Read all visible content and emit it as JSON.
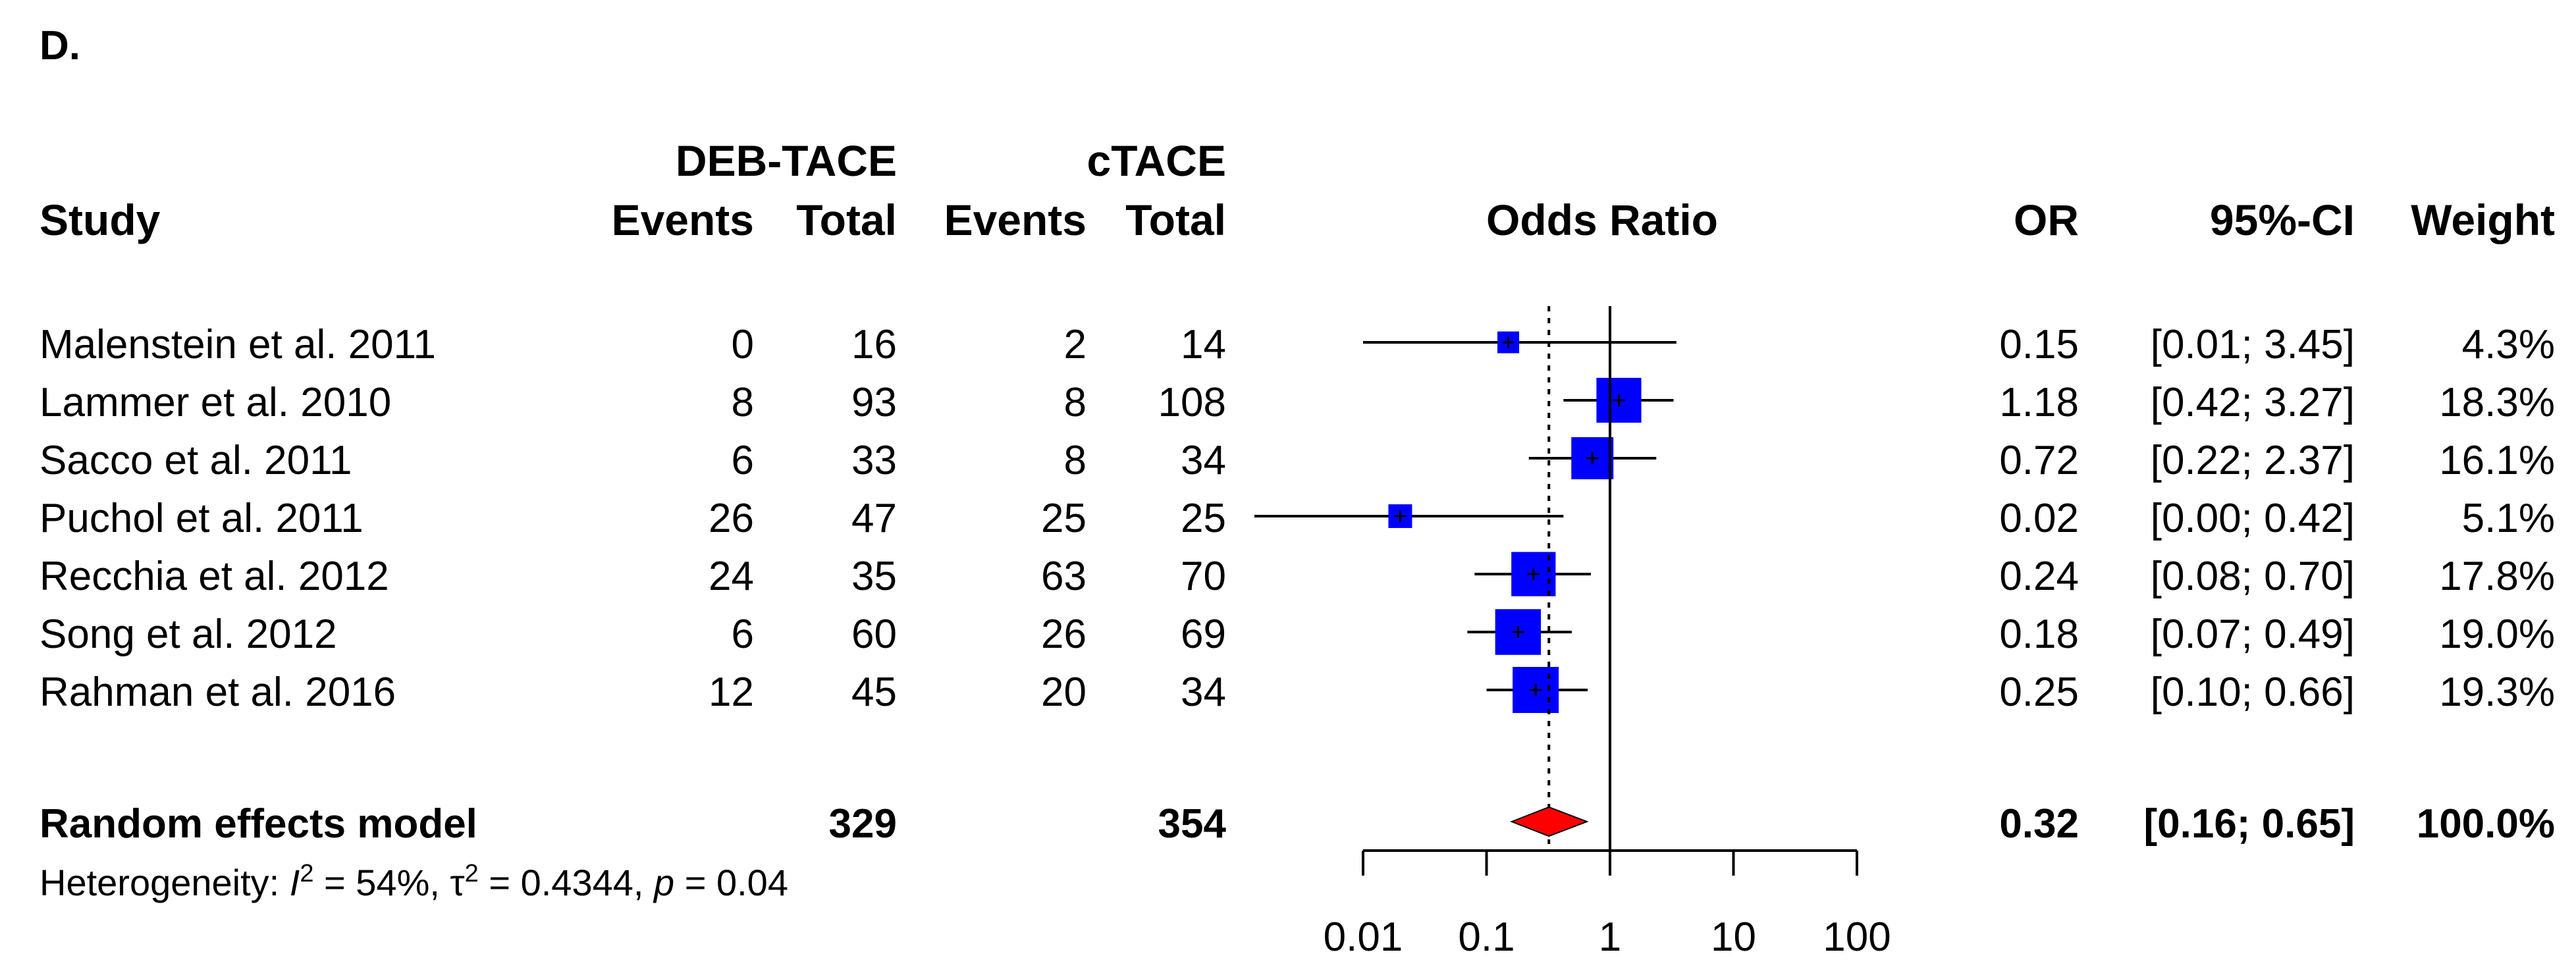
{
  "panel_label": "D.",
  "chart_data": {
    "type": "forest",
    "title": "D.",
    "group_headers": {
      "experimental": "DEB-TACE",
      "control": "cTACE"
    },
    "column_headers": {
      "study": "Study",
      "e_events": "Events",
      "e_total": "Total",
      "c_events": "Events",
      "c_total": "Total",
      "plot": "Odds Ratio",
      "or": "OR",
      "ci": "95%-CI",
      "weight": "Weight"
    },
    "studies": [
      {
        "name": "Malenstein et al. 2011",
        "e_events": "0",
        "e_total": "16",
        "c_events": "2",
        "c_total": "14",
        "or": 0.15,
        "lower": 0.01,
        "upper": 3.45,
        "weight": 4.3,
        "or_text": "0.15",
        "ci_text": "[0.01; 3.45]",
        "weight_text": "4.3%"
      },
      {
        "name": "Lammer et al. 2010",
        "e_events": "8",
        "e_total": "93",
        "c_events": "8",
        "c_total": "108",
        "or": 1.18,
        "lower": 0.42,
        "upper": 3.27,
        "weight": 18.3,
        "or_text": "1.18",
        "ci_text": "[0.42; 3.27]",
        "weight_text": "18.3%"
      },
      {
        "name": "Sacco et al. 2011",
        "e_events": "6",
        "e_total": "33",
        "c_events": "8",
        "c_total": "34",
        "or": 0.72,
        "lower": 0.22,
        "upper": 2.37,
        "weight": 16.1,
        "or_text": "0.72",
        "ci_text": "[0.22; 2.37]",
        "weight_text": "16.1%"
      },
      {
        "name": "Puchol et al. 2011",
        "e_events": "26",
        "e_total": "47",
        "c_events": "25",
        "c_total": "25",
        "or": 0.02,
        "lower": 0.001,
        "upper": 0.42,
        "weight": 5.1,
        "or_text": "0.02",
        "ci_text": "[0.00; 0.42]",
        "weight_text": "5.1%"
      },
      {
        "name": "Recchia et al. 2012",
        "e_events": "24",
        "e_total": "35",
        "c_events": "63",
        "c_total": "70",
        "or": 0.24,
        "lower": 0.08,
        "upper": 0.7,
        "weight": 17.8,
        "or_text": "0.24",
        "ci_text": "[0.08; 0.70]",
        "weight_text": "17.8%"
      },
      {
        "name": "Song et al. 2012",
        "e_events": "6",
        "e_total": "60",
        "c_events": "26",
        "c_total": "69",
        "or": 0.18,
        "lower": 0.07,
        "upper": 0.49,
        "weight": 19.0,
        "or_text": "0.18",
        "ci_text": "[0.07; 0.49]",
        "weight_text": "19.0%"
      },
      {
        "name": "Rahman et al. 2016",
        "e_events": "12",
        "e_total": "45",
        "c_events": "20",
        "c_total": "34",
        "or": 0.25,
        "lower": 0.1,
        "upper": 0.66,
        "weight": 19.3,
        "or_text": "0.25",
        "ci_text": "[0.10; 0.66]",
        "weight_text": "19.3%"
      }
    ],
    "pooled": {
      "label": "Random effects model",
      "e_total": "329",
      "c_total": "354",
      "or": 0.32,
      "lower": 0.16,
      "upper": 0.65,
      "or_text": "0.32",
      "ci_text": "[0.16; 0.65]",
      "weight_text": "100.0%"
    },
    "heterogeneity": {
      "prefix": "Heterogeneity: ",
      "i2_symbol": "I",
      "i2_value": " = 54%, ",
      "tau_symbol": "τ",
      "tau_value": " = 0.4344, ",
      "p_symbol": "p",
      "p_value": " = 0.04",
      "superscript": "2"
    },
    "x_axis": {
      "scale": "log",
      "range": [
        0.01,
        100
      ],
      "ticks": [
        0.01,
        0.1,
        1,
        10,
        100
      ],
      "tick_labels": [
        "0.01",
        "0.1",
        "1",
        "10",
        "100"
      ],
      "reference_line": 1
    },
    "colors": {
      "square": "#0000ff",
      "diamond": "#ff0000",
      "line": "#000000"
    }
  }
}
